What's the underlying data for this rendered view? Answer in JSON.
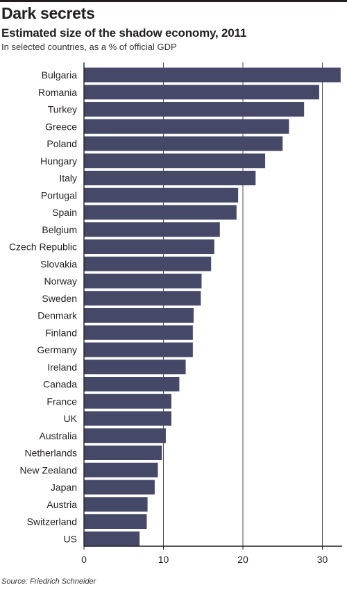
{
  "header": {
    "title": "Dark secrets",
    "subtitle": "Estimated size of the shadow economy, 2011",
    "note": "In selected countries, as a % of official GDP"
  },
  "footer": {
    "source": "Source: Friedrich Schneider"
  },
  "colors": {
    "bar": "#464867",
    "grid": "#231f20",
    "text": "#231f20"
  },
  "chart_data": {
    "type": "bar",
    "orientation": "horizontal",
    "categories": [
      "Bulgaria",
      "Romania",
      "Turkey",
      "Greece",
      "Poland",
      "Hungary",
      "Italy",
      "Portugal",
      "Spain",
      "Belgium",
      "Czech Republic",
      "Slovakia",
      "Norway",
      "Sweden",
      "Denmark",
      "Finland",
      "Germany",
      "Ireland",
      "Canada",
      "France",
      "UK",
      "Australia",
      "Netherlands",
      "New Zealand",
      "Japan",
      "Austria",
      "Switzerland",
      "US"
    ],
    "values": [
      32.3,
      29.6,
      27.7,
      25.8,
      25.0,
      22.8,
      21.6,
      19.4,
      19.2,
      17.1,
      16.4,
      16.0,
      14.8,
      14.7,
      13.8,
      13.7,
      13.7,
      12.8,
      12.0,
      11.0,
      11.0,
      10.3,
      9.8,
      9.3,
      8.9,
      8.0,
      7.9,
      7.0
    ],
    "xticks": [
      0,
      10,
      20,
      30
    ],
    "xlim": [
      0,
      32.5
    ],
    "grid": true,
    "legend": "none"
  }
}
